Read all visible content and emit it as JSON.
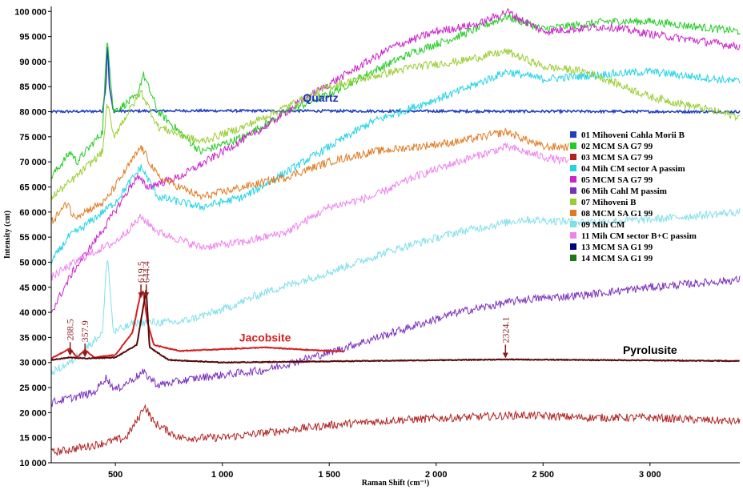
{
  "chart_data": {
    "type": "line",
    "xlabel": "Raman Shift (cm⁻¹)",
    "ylabel": "Intensity (cnt)",
    "xlim": [
      200,
      3420
    ],
    "ylim": [
      10000,
      101000
    ],
    "xticks": [
      500,
      1000,
      1500,
      2000,
      2500,
      3000
    ],
    "xtick_labels": [
      "500",
      "1 000",
      "1 500",
      "2 000",
      "2 500",
      "3 000"
    ],
    "yticks": [
      10000,
      15000,
      20000,
      25000,
      30000,
      35000,
      40000,
      45000,
      50000,
      55000,
      60000,
      65000,
      70000,
      75000,
      80000,
      85000,
      90000,
      95000,
      100000
    ],
    "ytick_labels": [
      "10 000",
      "15 000",
      "20 000",
      "25 000",
      "30 000",
      "35 000",
      "40 000",
      "45 000",
      "50 000",
      "55 000",
      "60 000",
      "65 000",
      "70 000",
      "75 000",
      "80 000",
      "85 000",
      "90 000",
      "95 000",
      "100 000"
    ],
    "legend_position": "right",
    "series": [
      {
        "name": "01 Mihoveni Cahla Morii B",
        "color": "#1f3fbf",
        "points": [
          [
            200,
            80000
          ],
          [
            440,
            80100
          ],
          [
            455,
            85000
          ],
          [
            463,
            94000
          ],
          [
            472,
            85000
          ],
          [
            490,
            80100
          ],
          [
            800,
            80200
          ],
          [
            3420,
            80000
          ]
        ]
      },
      {
        "name": "02  MCM SA G7 99",
        "color": "#22cc22",
        "points": [
          [
            200,
            67000
          ],
          [
            290,
            72000
          ],
          [
            320,
            70000
          ],
          [
            440,
            76000
          ],
          [
            462,
            95500
          ],
          [
            490,
            80000
          ],
          [
            600,
            83000
          ],
          [
            630,
            87500
          ],
          [
            700,
            80000
          ],
          [
            900,
            72000
          ],
          [
            1100,
            75000
          ],
          [
            1300,
            80000
          ],
          [
            1500,
            83500
          ],
          [
            1700,
            88000
          ],
          [
            1900,
            92000
          ],
          [
            2100,
            95000
          ],
          [
            2330,
            99000
          ],
          [
            2500,
            96500
          ],
          [
            2800,
            98000
          ],
          [
            3000,
            98000
          ],
          [
            3420,
            96000
          ]
        ]
      },
      {
        "name": "03 MCM SA G7 99",
        "color": "#b22222",
        "points": [
          [
            200,
            12000
          ],
          [
            400,
            13500
          ],
          [
            550,
            15000
          ],
          [
            610,
            19000
          ],
          [
            635,
            21500
          ],
          [
            680,
            18000
          ],
          [
            800,
            15000
          ],
          [
            1000,
            15000
          ],
          [
            1200,
            16000
          ],
          [
            1500,
            17500
          ],
          [
            1800,
            18500
          ],
          [
            2100,
            19000
          ],
          [
            2400,
            19500
          ],
          [
            2700,
            19000
          ],
          [
            3000,
            19000
          ],
          [
            3420,
            18200
          ]
        ]
      },
      {
        "name": "04 Mih CM sector A passim",
        "color": "#22d3e6",
        "points": [
          [
            200,
            50000
          ],
          [
            280,
            55000
          ],
          [
            350,
            57000
          ],
          [
            500,
            62000
          ],
          [
            620,
            69000
          ],
          [
            700,
            63000
          ],
          [
            900,
            61000
          ],
          [
            1100,
            63000
          ],
          [
            1300,
            68000
          ],
          [
            1500,
            73000
          ],
          [
            1700,
            78000
          ],
          [
            1900,
            81000
          ],
          [
            2100,
            84000
          ],
          [
            2330,
            88000
          ],
          [
            2500,
            86500
          ],
          [
            2800,
            87500
          ],
          [
            3000,
            88000
          ],
          [
            3420,
            86000
          ]
        ]
      },
      {
        "name": "05 MCM SA G7 99",
        "color": "#cc22cc",
        "points": [
          [
            200,
            40000
          ],
          [
            300,
            48000
          ],
          [
            450,
            57000
          ],
          [
            600,
            67000
          ],
          [
            650,
            65000
          ],
          [
            800,
            67000
          ],
          [
            1000,
            72000
          ],
          [
            1200,
            77000
          ],
          [
            1400,
            83000
          ],
          [
            1600,
            88000
          ],
          [
            1800,
            93000
          ],
          [
            2000,
            96000
          ],
          [
            2200,
            97500
          ],
          [
            2330,
            100000
          ],
          [
            2500,
            96000
          ],
          [
            2800,
            97000
          ],
          [
            3000,
            95500
          ],
          [
            3420,
            93000
          ]
        ]
      },
      {
        "name": "06 Mih Cahl M passim",
        "color": "#7b2fbe",
        "points": [
          [
            200,
            22000
          ],
          [
            400,
            24000
          ],
          [
            455,
            27000
          ],
          [
            500,
            24500
          ],
          [
            630,
            28000
          ],
          [
            700,
            25500
          ],
          [
            900,
            27000
          ],
          [
            1200,
            28500
          ],
          [
            1500,
            32000
          ],
          [
            1800,
            36000
          ],
          [
            2100,
            40000
          ],
          [
            2400,
            42500
          ],
          [
            2700,
            43500
          ],
          [
            3000,
            45000
          ],
          [
            3420,
            46500
          ]
        ]
      },
      {
        "name": "07 Mihoveni B",
        "color": "#9acd32",
        "points": [
          [
            200,
            63000
          ],
          [
            290,
            66000
          ],
          [
            440,
            72000
          ],
          [
            462,
            82000
          ],
          [
            490,
            75000
          ],
          [
            620,
            84000
          ],
          [
            700,
            77000
          ],
          [
            900,
            74000
          ],
          [
            1100,
            77000
          ],
          [
            1300,
            81000
          ],
          [
            1500,
            85000
          ],
          [
            1700,
            87000
          ],
          [
            1900,
            89000
          ],
          [
            2100,
            90000
          ],
          [
            2330,
            92000
          ],
          [
            2500,
            89000
          ],
          [
            2700,
            88000
          ],
          [
            3000,
            83000
          ],
          [
            3420,
            79000
          ]
        ]
      },
      {
        "name": "08 MCM SA G1 99",
        "color": "#e07b20",
        "points": [
          [
            200,
            58000
          ],
          [
            280,
            62000
          ],
          [
            300,
            59000
          ],
          [
            450,
            62000
          ],
          [
            620,
            73000
          ],
          [
            700,
            67000
          ],
          [
            900,
            63000
          ],
          [
            1100,
            65000
          ],
          [
            1300,
            67000
          ],
          [
            1500,
            70000
          ],
          [
            1700,
            72000
          ],
          [
            1900,
            73000
          ],
          [
            2100,
            74000
          ],
          [
            2330,
            76000
          ],
          [
            2500,
            73000
          ],
          [
            2620,
            73000
          ]
        ]
      },
      {
        "name": "09 Mih CM",
        "color": "#80e0ea",
        "points": [
          [
            200,
            28000
          ],
          [
            290,
            30000
          ],
          [
            440,
            36000
          ],
          [
            462,
            52000
          ],
          [
            490,
            36000
          ],
          [
            600,
            38000
          ],
          [
            800,
            38000
          ],
          [
            1000,
            40500
          ],
          [
            1200,
            44000
          ],
          [
            1500,
            48000
          ],
          [
            1800,
            52500
          ],
          [
            2100,
            56000
          ],
          [
            2400,
            58500
          ],
          [
            2700,
            58000
          ],
          [
            3000,
            58500
          ],
          [
            3420,
            60000
          ]
        ]
      },
      {
        "name": "11 Mih CM sector B+C passim",
        "color": "#ee82ee",
        "points": [
          [
            200,
            47000
          ],
          [
            350,
            51000
          ],
          [
            500,
            54000
          ],
          [
            620,
            59000
          ],
          [
            700,
            56000
          ],
          [
            900,
            53000
          ],
          [
            1100,
            54000
          ],
          [
            1300,
            56000
          ],
          [
            1500,
            61000
          ],
          [
            1700,
            63000
          ],
          [
            1900,
            67000
          ],
          [
            2100,
            70000
          ],
          [
            2330,
            73000
          ],
          [
            2500,
            71000
          ],
          [
            2620,
            70000
          ]
        ]
      },
      {
        "name": "13 MCM SA G1 99",
        "color": "#000080",
        "points": []
      },
      {
        "name": "14 MCM SA G1 99",
        "color": "#1a7a1a",
        "points": []
      }
    ],
    "reference_spectra": [
      {
        "name": "Jacobsite",
        "color": "#d42020",
        "points": [
          [
            200,
            30800
          ],
          [
            288,
            32800
          ],
          [
            320,
            31000
          ],
          [
            358,
            32500
          ],
          [
            400,
            31000
          ],
          [
            500,
            31500
          ],
          [
            580,
            36000
          ],
          [
            619,
            44000
          ],
          [
            630,
            44200
          ],
          [
            650,
            38000
          ],
          [
            680,
            33500
          ],
          [
            800,
            32300
          ],
          [
            1200,
            33000
          ],
          [
            1400,
            32500
          ],
          [
            1570,
            32200
          ]
        ]
      },
      {
        "name": "Pyrolusite",
        "color": "#5a0a0a",
        "points": [
          [
            200,
            30500
          ],
          [
            288,
            31000
          ],
          [
            358,
            30800
          ],
          [
            500,
            31000
          ],
          [
            600,
            33500
          ],
          [
            644,
            44500
          ],
          [
            660,
            33000
          ],
          [
            750,
            30500
          ],
          [
            1000,
            30000
          ],
          [
            2324,
            30600
          ],
          [
            3420,
            30300
          ]
        ]
      }
    ],
    "annotations": [
      {
        "text": "Quartz",
        "x": 1460,
        "y": 82000,
        "color": "#1f2fbf"
      },
      {
        "text": "Jacobsite",
        "x": 1200,
        "y": 34200,
        "color": "#d42020"
      },
      {
        "text": "Pyrolusite",
        "x": 3000,
        "y": 31700,
        "color": "#000000"
      }
    ],
    "peak_labels": [
      {
        "text": "288.5",
        "x": 288.5,
        "y": 31500
      },
      {
        "text": "357.9",
        "x": 357.9,
        "y": 31200
      },
      {
        "text": "619.5",
        "x": 619.5,
        "y": 43000
      },
      {
        "text": "644.4",
        "x": 644.4,
        "y": 43000
      },
      {
        "text": "2324.1",
        "x": 2324.1,
        "y": 31000
      }
    ]
  }
}
